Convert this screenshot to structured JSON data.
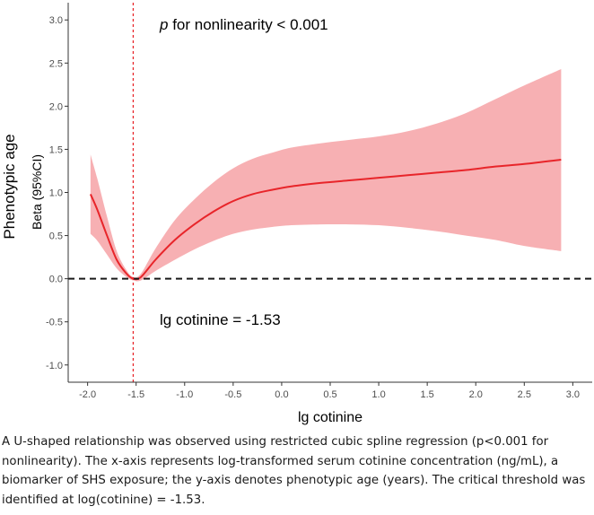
{
  "chart_data": {
    "type": "line",
    "title": "",
    "xlabel": "lg cotinine",
    "ylabel_outer": "Phenotypic age",
    "ylabel_inner": "Beta (95%CI)",
    "xlim": [
      -2.2,
      3.2
    ],
    "ylim": [
      -1.2,
      3.2
    ],
    "x_ticks": [
      -2.0,
      -1.5,
      -1.0,
      -0.5,
      0.0,
      0.5,
      1.0,
      1.5,
      2.0,
      2.5,
      3.0
    ],
    "x_tick_labels": [
      "-2.0",
      "-1.5",
      "-1.0",
      "-0.5",
      "0.0",
      "0.5",
      "1.0",
      "1.5",
      "2.0",
      "2.5",
      "3.0"
    ],
    "y_ticks": [
      -1.0,
      -0.5,
      0.0,
      0.5,
      1.0,
      1.5,
      2.0,
      2.5,
      3.0
    ],
    "y_tick_labels": [
      "-1.0",
      "-0.5",
      "0.0",
      "0.5",
      "1.0",
      "1.5",
      "2.0",
      "2.5",
      "3.0"
    ],
    "grid": false,
    "reference_hline": 0.0,
    "reference_vline": -1.53,
    "annotations": {
      "p_italic": "p",
      "p_rest": " for nonlinearity < 0.001",
      "threshold": "lg cotinine = -1.53"
    },
    "series": [
      {
        "x": [
          -1.97,
          -1.9,
          -1.8,
          -1.7,
          -1.6,
          -1.53,
          -1.45,
          -1.3,
          -1.1,
          -0.9,
          -0.7,
          -0.5,
          -0.3,
          -0.1,
          0.1,
          0.4,
          0.7,
          1.0,
          1.3,
          1.6,
          1.9,
          2.2,
          2.5,
          2.88
        ],
        "y": [
          0.98,
          0.8,
          0.5,
          0.22,
          0.06,
          0.0,
          0.02,
          0.22,
          0.45,
          0.63,
          0.78,
          0.9,
          0.98,
          1.03,
          1.07,
          1.11,
          1.14,
          1.17,
          1.2,
          1.23,
          1.26,
          1.3,
          1.33,
          1.38
        ],
        "lower": [
          0.52,
          0.44,
          0.28,
          0.12,
          0.02,
          -0.02,
          -0.02,
          0.09,
          0.22,
          0.34,
          0.44,
          0.52,
          0.57,
          0.6,
          0.62,
          0.63,
          0.63,
          0.62,
          0.59,
          0.55,
          0.5,
          0.45,
          0.38,
          0.32
        ],
        "upper": [
          1.44,
          1.16,
          0.72,
          0.32,
          0.1,
          0.02,
          0.06,
          0.35,
          0.68,
          0.92,
          1.12,
          1.28,
          1.39,
          1.46,
          1.52,
          1.57,
          1.61,
          1.65,
          1.71,
          1.8,
          1.92,
          2.08,
          2.24,
          2.43
        ]
      }
    ]
  },
  "caption": "A U-shaped relationship was observed using restricted cubic spline regression (p<0.001 for nonlinearity). The x-axis represents log-transformed serum cotinine concentration (ng/mL), a biomarker of SHS exposure; the y-axis denotes phenotypic age (years). The critical threshold was identified at log(cotinine) = -1.53.",
  "colors": {
    "line": "#e8252a",
    "band": "#f7b0b3",
    "vline": "#e8252a",
    "hline": "#1a1a1a",
    "axis": "#333333"
  }
}
